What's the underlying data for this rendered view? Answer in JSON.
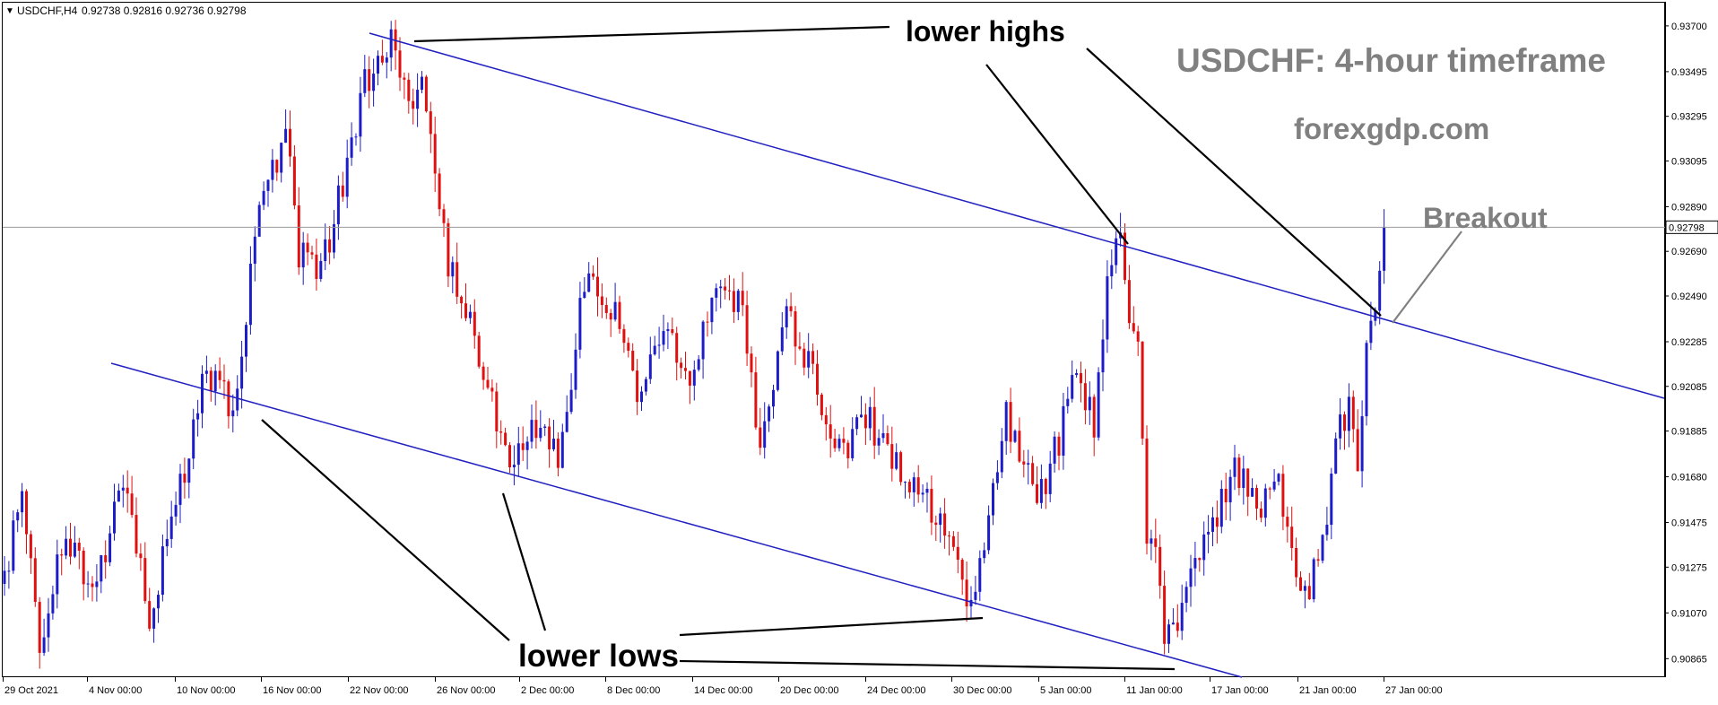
{
  "header": {
    "caret": "▼",
    "symbol": "USDCHF,H4",
    "ohlc": "0.92738 0.92816 0.92736 0.92798"
  },
  "annotations": {
    "title": "USDCHF: 4-hour timeframe",
    "site": "forexgdp.com",
    "lower_highs": "lower highs",
    "lower_lows": "lower lows",
    "breakout": "Breakout"
  },
  "colors": {
    "bull": "#1c1cc8",
    "bear": "#e01010",
    "trendline": "#2020c0",
    "annotation_line": "#000000",
    "breakout_line": "#808080",
    "title_text": "#808080"
  },
  "chart_data": {
    "type": "candlestick",
    "symbol": "USDCHF",
    "timeframe": "H4",
    "ylim": [
      0.9079,
      0.938
    ],
    "y_ticks": [
      0.90865,
      0.9107,
      0.91275,
      0.91475,
      0.9168,
      0.91885,
      0.92085,
      0.92285,
      0.9249,
      0.9269,
      0.9289,
      0.93095,
      0.93295,
      0.93495,
      0.937
    ],
    "x_ticks": [
      "29 Oct 2021",
      "4 Nov 00:00",
      "10 Nov 00:00",
      "16 Nov 00:00",
      "22 Nov 00:00",
      "26 Nov 00:00",
      "2 Dec 00:00",
      "8 Dec 00:00",
      "14 Dec 00:00",
      "20 Dec 00:00",
      "24 Dec 00:00",
      "30 Dec 00:00",
      "5 Jan 00:00",
      "11 Jan 00:00",
      "17 Jan 00:00",
      "21 Jan 00:00",
      "27 Jan 00:00"
    ],
    "last_price": 0.92798,
    "anchors": [
      {
        "bar": 0,
        "price": 0.912
      },
      {
        "bar": 4,
        "price": 0.9165
      },
      {
        "bar": 8,
        "price": 0.909
      },
      {
        "bar": 14,
        "price": 0.9145
      },
      {
        "bar": 20,
        "price": 0.9115
      },
      {
        "bar": 27,
        "price": 0.9165
      },
      {
        "bar": 33,
        "price": 0.9105
      },
      {
        "bar": 42,
        "price": 0.918
      },
      {
        "bar": 46,
        "price": 0.9215
      },
      {
        "bar": 52,
        "price": 0.92
      },
      {
        "bar": 58,
        "price": 0.9285
      },
      {
        "bar": 64,
        "price": 0.9325
      },
      {
        "bar": 67,
        "price": 0.9268
      },
      {
        "bar": 72,
        "price": 0.9258
      },
      {
        "bar": 78,
        "price": 0.931
      },
      {
        "bar": 82,
        "price": 0.9345
      },
      {
        "bar": 88,
        "price": 0.9365
      },
      {
        "bar": 92,
        "price": 0.933
      },
      {
        "bar": 95,
        "price": 0.935
      },
      {
        "bar": 98,
        "price": 0.931
      },
      {
        "bar": 101,
        "price": 0.9262
      },
      {
        "bar": 106,
        "price": 0.924
      },
      {
        "bar": 111,
        "price": 0.92
      },
      {
        "bar": 115,
        "price": 0.9172
      },
      {
        "bar": 122,
        "price": 0.9195
      },
      {
        "bar": 126,
        "price": 0.9172
      },
      {
        "bar": 132,
        "price": 0.9255
      },
      {
        "bar": 138,
        "price": 0.9245
      },
      {
        "bar": 144,
        "price": 0.9205
      },
      {
        "bar": 150,
        "price": 0.924
      },
      {
        "bar": 156,
        "price": 0.9208
      },
      {
        "bar": 162,
        "price": 0.9258
      },
      {
        "bar": 168,
        "price": 0.9245
      },
      {
        "bar": 172,
        "price": 0.918
      },
      {
        "bar": 178,
        "price": 0.924
      },
      {
        "bar": 184,
        "price": 0.9215
      },
      {
        "bar": 190,
        "price": 0.9178
      },
      {
        "bar": 196,
        "price": 0.9195
      },
      {
        "bar": 202,
        "price": 0.9175
      },
      {
        "bar": 208,
        "price": 0.9165
      },
      {
        "bar": 214,
        "price": 0.9145
      },
      {
        "bar": 220,
        "price": 0.9112
      },
      {
        "bar": 224,
        "price": 0.9145
      },
      {
        "bar": 228,
        "price": 0.9195
      },
      {
        "bar": 232,
        "price": 0.9175
      },
      {
        "bar": 236,
        "price": 0.916
      },
      {
        "bar": 240,
        "price": 0.9185
      },
      {
        "bar": 244,
        "price": 0.9215
      },
      {
        "bar": 248,
        "price": 0.919
      },
      {
        "bar": 252,
        "price": 0.927
      },
      {
        "bar": 254,
        "price": 0.9272
      },
      {
        "bar": 256,
        "price": 0.924
      },
      {
        "bar": 258,
        "price": 0.9225
      },
      {
        "bar": 260,
        "price": 0.9135
      },
      {
        "bar": 262,
        "price": 0.914
      },
      {
        "bar": 264,
        "price": 0.91
      },
      {
        "bar": 267,
        "price": 0.9095
      },
      {
        "bar": 270,
        "price": 0.913
      },
      {
        "bar": 276,
        "price": 0.915
      },
      {
        "bar": 280,
        "price": 0.917
      },
      {
        "bar": 286,
        "price": 0.9155
      },
      {
        "bar": 290,
        "price": 0.9165
      },
      {
        "bar": 294,
        "price": 0.912
      },
      {
        "bar": 297,
        "price": 0.9115
      },
      {
        "bar": 300,
        "price": 0.914
      },
      {
        "bar": 304,
        "price": 0.919
      },
      {
        "bar": 306,
        "price": 0.92
      },
      {
        "bar": 308,
        "price": 0.9175
      },
      {
        "bar": 310,
        "price": 0.922
      },
      {
        "bar": 312,
        "price": 0.924
      },
      {
        "bar": 314,
        "price": 0.92798
      }
    ]
  }
}
